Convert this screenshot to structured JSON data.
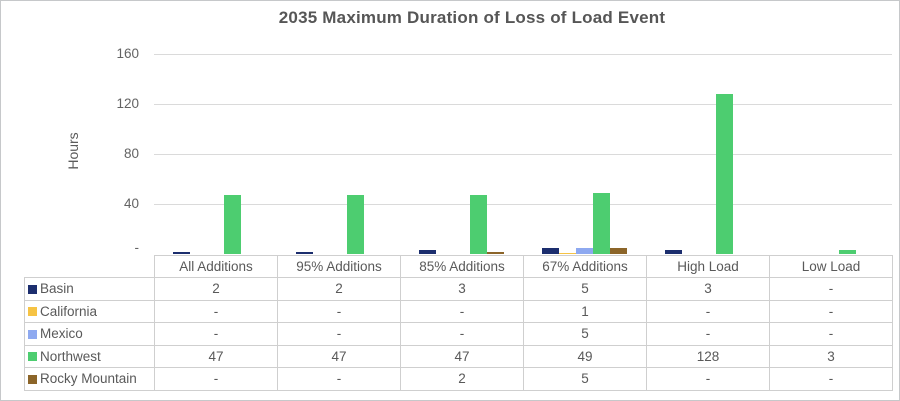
{
  "frame": {
    "background": "#ffffff",
    "border_color": "#c6c8ca"
  },
  "chart": {
    "title": "2035 Maximum Duration of Loss of Load Event",
    "y_axis_label": "Hours",
    "y_tick_labels": [
      "160",
      "120",
      "80",
      "40",
      "-"
    ],
    "grid_color": "#dadada",
    "title_color": "#565656",
    "text_color": "#595959"
  },
  "chart_data": {
    "type": "bar",
    "title": "2035 Maximum Duration of Loss of Load Event",
    "xlabel": "",
    "ylabel": "Hours",
    "ylim": [
      0,
      160
    ],
    "y_tick_interval": 40,
    "grid": true,
    "legend_position": "table-rows-left",
    "categories": [
      "All Additions",
      "95% Additions",
      "85% Additions",
      "67% Additions",
      "High Load",
      "Low Load"
    ],
    "series": [
      {
        "name": "Basin",
        "color": "#1c2e6e",
        "values": [
          2,
          2,
          3,
          5,
          3,
          null
        ],
        "display": [
          "2",
          "2",
          "3",
          "5",
          "3",
          "-"
        ]
      },
      {
        "name": "California",
        "color": "#f6c344",
        "values": [
          null,
          null,
          null,
          1,
          null,
          null
        ],
        "display": [
          "-",
          "-",
          "-",
          "1",
          "-",
          "-"
        ]
      },
      {
        "name": "Mexico",
        "color": "#8ea9f0",
        "values": [
          null,
          null,
          null,
          5,
          null,
          null
        ],
        "display": [
          "-",
          "-",
          "-",
          "5",
          "-",
          "-"
        ]
      },
      {
        "name": "Northwest",
        "color": "#4dcd70",
        "values": [
          47,
          47,
          47,
          49,
          128,
          3
        ],
        "display": [
          "47",
          "47",
          "47",
          "49",
          "128",
          "3"
        ]
      },
      {
        "name": "Rocky Mountain",
        "color": "#8c6529",
        "values": [
          null,
          null,
          2,
          5,
          null,
          null
        ],
        "display": [
          "-",
          "-",
          "2",
          "5",
          "-",
          "-"
        ]
      }
    ]
  }
}
